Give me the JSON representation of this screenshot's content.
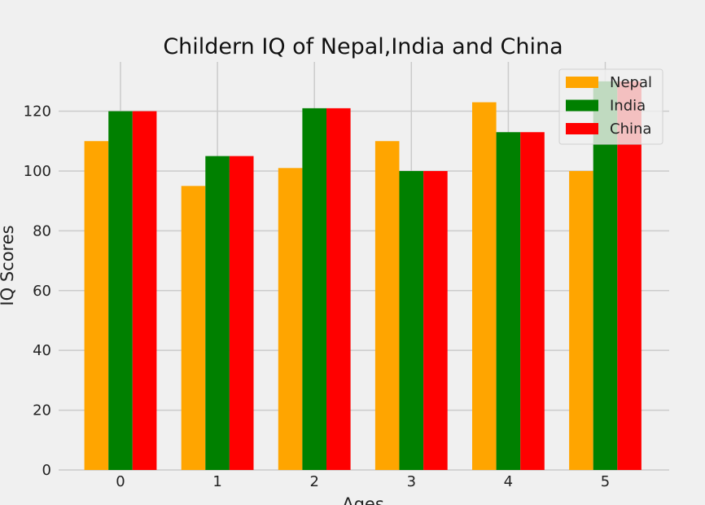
{
  "chart_data": {
    "type": "bar",
    "title": "Childern IQ of Nepal,India and China",
    "xlabel": "Ages",
    "ylabel": "IQ Scores",
    "categories": [
      "0",
      "1",
      "2",
      "3",
      "4",
      "5"
    ],
    "series": [
      {
        "name": "Nepal",
        "color": "#ffa500",
        "values": [
          110,
          95,
          101,
          110,
          123,
          100
        ]
      },
      {
        "name": "India",
        "color": "#008000",
        "values": [
          120,
          105,
          121,
          100,
          113,
          130
        ]
      },
      {
        "name": "China",
        "color": "#ff0000",
        "values": [
          120,
          105,
          121,
          100,
          113,
          130
        ]
      }
    ],
    "yticks": [
      0,
      20,
      40,
      60,
      80,
      100,
      120
    ],
    "ylim": [
      0,
      136.5
    ],
    "grid": true,
    "legend_position": "top-right",
    "background": "#f0f0f0",
    "grid_color": "#cbcbcb"
  }
}
